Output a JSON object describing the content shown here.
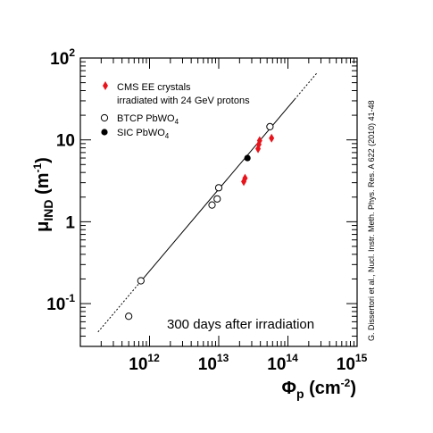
{
  "chart_data": {
    "type": "scatter",
    "x_scale": "log",
    "y_scale": "log",
    "xlim": [
      100000000000.0,
      1000000000000000.0
    ],
    "ylim": [
      0.03,
      100
    ],
    "x_ticks": [
      {
        "base": "10",
        "exp": "12",
        "value": 1000000000000.0
      },
      {
        "base": "10",
        "exp": "13",
        "value": 10000000000000.0
      },
      {
        "base": "10",
        "exp": "14",
        "value": 100000000000000.0
      },
      {
        "base": "10",
        "exp": "15",
        "value": 1000000000000000.0
      }
    ],
    "y_ticks": [
      {
        "base": "10",
        "exp": "-1",
        "value": 0.1
      },
      {
        "text": "1",
        "value": 1
      },
      {
        "text": "10",
        "value": 10
      },
      {
        "base": "10",
        "exp": "2",
        "value": 100
      }
    ],
    "xlabel": {
      "main": "Φ",
      "sub": "p",
      "unit": " (cm",
      "unit_exp": "-2",
      "unit_close": ")"
    },
    "ylabel": {
      "main": "μ",
      "sub": "IND",
      "unit": " (m",
      "unit_exp": "-1",
      "unit_close": ")"
    },
    "grid": false,
    "legend_position": "top-left",
    "series": [
      {
        "name": "CMS EE crystals irradiated with 24 GeV protons",
        "legend_lines": [
          "CMS EE crystals",
          "irradiated with 24 GeV protons"
        ],
        "marker": "diamond",
        "color": "#e8141c",
        "points": [
          {
            "x": 23000000000000.0,
            "y": 3.1
          },
          {
            "x": 24000000000000.0,
            "y": 3.4
          },
          {
            "x": 37000000000000.0,
            "y": 7.8
          },
          {
            "x": 38000000000000.0,
            "y": 8.8
          },
          {
            "x": 39000000000000.0,
            "y": 9.8
          },
          {
            "x": 58000000000000.0,
            "y": 10.5
          }
        ]
      },
      {
        "name": "BTCP PbWO4",
        "legend_main": "BTCP PbWO",
        "legend_sub": "4",
        "marker": "open-circle",
        "color": "#000000",
        "points": [
          {
            "x": 500000000000.0,
            "y": 0.07
          },
          {
            "x": 750000000000.0,
            "y": 0.19
          },
          {
            "x": 8000000000000.0,
            "y": 1.6
          },
          {
            "x": 9500000000000.0,
            "y": 1.9
          },
          {
            "x": 10000000000000.0,
            "y": 2.6
          },
          {
            "x": 55000000000000.0,
            "y": 14.5
          }
        ]
      },
      {
        "name": "SIC PbWO4",
        "legend_main": "SIC PbWO",
        "legend_sub": "4",
        "marker": "filled-circle",
        "color": "#000000",
        "points": [
          {
            "x": 26000000000000.0,
            "y": 6.0
          }
        ]
      }
    ],
    "fit_line": {
      "x_start": 700000000000.0,
      "x_end": 125000000000000.0,
      "slope_log": 1.0,
      "y_at_1e13": 2.5,
      "style": "solid"
    },
    "extrapolation": [
      {
        "x_start": 180000000000.0,
        "x_end": 700000000000.0,
        "style": "dotted"
      },
      {
        "x_start": 125000000000000.0,
        "x_end": 260000000000000.0,
        "style": "dotted"
      }
    ],
    "annotation": "300 days after irradiation",
    "citation": "G. Dissertori et al., Nucl. Instr. Meth. Phys. Res. A 622 (2010) 41-48"
  }
}
